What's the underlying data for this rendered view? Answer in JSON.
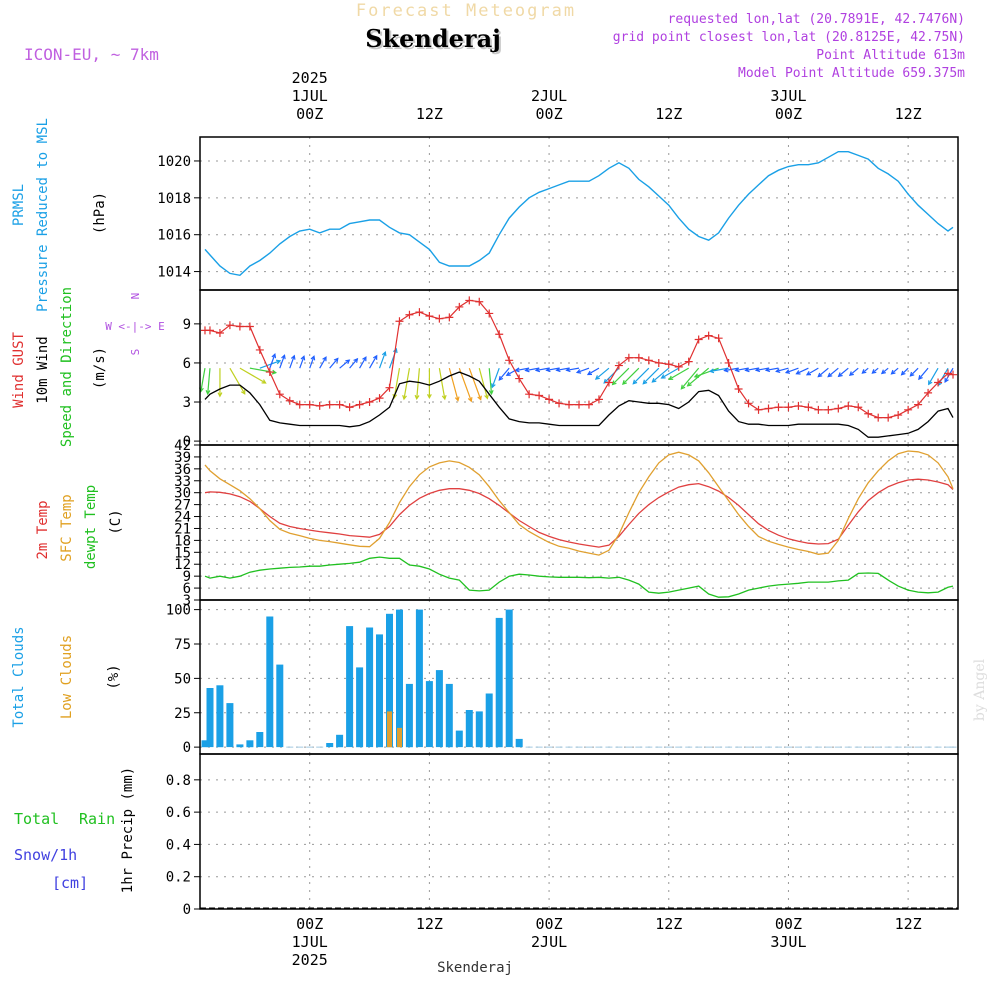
{
  "header": {
    "super_title": "Forecast Meteogram",
    "location": "Skenderaj",
    "model": "ICON-EU, ~ 7km",
    "requested": "requested lon,lat (20.7891E, 42.7476N)",
    "closest": "grid point closest lon,lat (20.8125E, 42.75N)",
    "point_altitude": "Point Altitude 613m",
    "model_altitude": "Model Point Altitude 659.375m",
    "footer_location": "Skenderaj",
    "watermark": "by Angel"
  },
  "time_axis": {
    "top_labels": [
      {
        "hour": 24,
        "lines": [
          "2025",
          "1JUL",
          "00Z"
        ]
      },
      {
        "hour": 36,
        "lines": [
          "12Z"
        ]
      },
      {
        "hour": 48,
        "lines": [
          "2JUL",
          "00Z"
        ]
      },
      {
        "hour": 60,
        "lines": [
          "12Z"
        ]
      },
      {
        "hour": 72,
        "lines": [
          "3JUL",
          "00Z"
        ]
      },
      {
        "hour": 84,
        "lines": [
          "12Z"
        ]
      }
    ],
    "bottom_labels": [
      {
        "hour": 24,
        "lines": [
          "00Z",
          "1JUL",
          "2025"
        ]
      },
      {
        "hour": 36,
        "lines": [
          "12Z"
        ]
      },
      {
        "hour": 48,
        "lines": [
          "00Z",
          "2JUL"
        ]
      },
      {
        "hour": 60,
        "lines": [
          "12Z"
        ]
      },
      {
        "hour": 72,
        "lines": [
          "00Z",
          "3JUL"
        ]
      },
      {
        "hour": 84,
        "lines": [
          "12Z"
        ]
      }
    ],
    "hour_min": 13,
    "hour_max": 89
  },
  "chart_data": [
    {
      "type": "line",
      "panel": "pressure",
      "labels": {
        "blue1": "PRMSL",
        "blue2": "Pressure Reduced to MSL",
        "unit": "(hPa)"
      },
      "ylim": [
        1013,
        1021.3
      ],
      "yticks": [
        1014,
        1016,
        1018,
        1020
      ],
      "x": [
        13.5,
        14,
        15,
        16,
        17,
        18,
        19,
        20,
        21,
        22,
        23,
        24,
        25,
        26,
        27,
        28,
        29,
        30,
        31,
        32,
        33,
        34,
        35,
        36,
        37,
        38,
        39,
        40,
        41,
        42,
        43,
        44,
        45,
        46,
        47,
        48,
        49,
        50,
        51,
        52,
        53,
        54,
        55,
        56,
        57,
        58,
        59,
        60,
        61,
        62,
        63,
        64,
        65,
        66,
        67,
        68,
        69,
        70,
        71,
        72,
        73,
        74,
        75,
        76,
        77,
        78,
        79,
        80,
        81,
        82,
        83,
        84,
        85,
        86,
        87,
        88,
        88.5
      ],
      "series": [
        {
          "values": [
            1015.2,
            1014.9,
            1014.3,
            1013.9,
            1013.8,
            1014.3,
            1014.6,
            1015.0,
            1015.5,
            1015.9,
            1016.2,
            1016.3,
            1016.1,
            1016.3,
            1016.3,
            1016.6,
            1016.7,
            1016.8,
            1016.8,
            1016.4,
            1016.1,
            1016.0,
            1015.6,
            1015.2,
            1014.5,
            1014.3,
            1014.3,
            1014.3,
            1014.6,
            1015.0,
            1016.0,
            1016.9,
            1017.5,
            1018.0,
            1018.3,
            1018.5,
            1018.7,
            1018.9,
            1018.9,
            1018.9,
            1019.2,
            1019.6,
            1019.9,
            1019.6,
            1019.0,
            1018.6,
            1018.1,
            1017.6,
            1016.9,
            1016.3,
            1015.9,
            1015.7,
            1016.1,
            1016.9,
            1017.6,
            1018.2,
            1018.7,
            1019.2,
            1019.5,
            1019.7,
            1019.8,
            1019.8,
            1019.9,
            1020.2,
            1020.5,
            1020.5,
            1020.3,
            1020.1,
            1019.6,
            1019.3,
            1018.9,
            1018.2,
            1017.6,
            1017.1,
            1016.6,
            1016.2,
            1016.4
          ]
        }
      ]
    },
    {
      "type": "line",
      "panel": "wind",
      "labels": {
        "red": "Wind GUST",
        "black": "10m Wind",
        "green": "Speed and Direction",
        "unit": "(m/s)",
        "compass": [
          "N",
          "W <-|-> E",
          "S"
        ]
      },
      "ylim": [
        -0.3,
        11.6
      ],
      "yticks": [
        0,
        3,
        6,
        9
      ],
      "x": [
        13.5,
        14,
        15,
        16,
        17,
        18,
        19,
        20,
        21,
        22,
        23,
        24,
        25,
        26,
        27,
        28,
        29,
        30,
        31,
        32,
        33,
        34,
        35,
        36,
        37,
        38,
        39,
        40,
        41,
        42,
        43,
        44,
        45,
        46,
        47,
        48,
        49,
        50,
        51,
        52,
        53,
        54,
        55,
        56,
        57,
        58,
        59,
        60,
        61,
        62,
        63,
        64,
        65,
        66,
        67,
        68,
        69,
        70,
        71,
        72,
        73,
        74,
        75,
        76,
        77,
        78,
        79,
        80,
        81,
        82,
        83,
        84,
        85,
        86,
        87,
        88,
        88.5
      ],
      "series": [
        {
          "name": "Wind GUST",
          "values": [
            8.5,
            8.5,
            8.3,
            8.9,
            8.8,
            8.8,
            7.0,
            5.3,
            3.6,
            3.1,
            2.8,
            2.8,
            2.7,
            2.8,
            2.8,
            2.6,
            2.8,
            3.0,
            3.3,
            4.1,
            9.2,
            9.7,
            9.9,
            9.6,
            9.4,
            9.5,
            10.3,
            10.8,
            10.7,
            9.8,
            8.2,
            6.2,
            4.8,
            3.6,
            3.5,
            3.2,
            2.9,
            2.8,
            2.8,
            2.8,
            3.2,
            4.5,
            5.8,
            6.4,
            6.4,
            6.2,
            6.0,
            5.9,
            5.7,
            6.1,
            7.8,
            8.1,
            7.9,
            6.0,
            4.0,
            2.9,
            2.4,
            2.5,
            2.6,
            2.6,
            2.7,
            2.6,
            2.4,
            2.4,
            2.5,
            2.7,
            2.6,
            2.1,
            1.8,
            1.8,
            2.0,
            2.4,
            2.8,
            3.7,
            4.5,
            5.2,
            5.1
          ]
        },
        {
          "name": "10m Wind",
          "values": [
            3.2,
            3.6,
            4.0,
            4.3,
            4.3,
            3.7,
            2.8,
            1.6,
            1.4,
            1.3,
            1.2,
            1.2,
            1.2,
            1.2,
            1.2,
            1.1,
            1.2,
            1.5,
            2.0,
            2.6,
            4.4,
            4.6,
            4.5,
            4.3,
            4.6,
            5.0,
            5.3,
            5.0,
            4.6,
            3.6,
            2.6,
            1.7,
            1.5,
            1.4,
            1.4,
            1.3,
            1.2,
            1.2,
            1.2,
            1.2,
            1.2,
            2.0,
            2.7,
            3.1,
            3.0,
            2.9,
            2.9,
            2.8,
            2.5,
            3.0,
            3.8,
            3.9,
            3.5,
            2.3,
            1.5,
            1.3,
            1.3,
            1.2,
            1.2,
            1.2,
            1.3,
            1.3,
            1.3,
            1.3,
            1.3,
            1.2,
            0.9,
            0.3,
            0.3,
            0.4,
            0.5,
            0.6,
            0.9,
            1.5,
            2.3,
            2.5,
            1.8
          ]
        }
      ],
      "barbs_dir_from_deg": [
        10,
        5,
        0,
        330,
        300,
        280,
        250,
        200,
        200,
        200,
        200,
        200,
        210,
        220,
        230,
        220,
        210,
        210,
        200,
        200,
        10,
        10,
        5,
        0,
        350,
        345,
        340,
        340,
        345,
        355,
        20,
        40,
        60,
        80,
        80,
        80,
        80,
        80,
        80,
        70,
        60,
        50,
        45,
        45,
        45,
        45,
        45,
        50,
        60,
        60,
        40,
        50,
        70,
        80,
        80,
        80,
        80,
        80,
        80,
        75,
        70,
        65,
        60,
        50,
        50,
        50,
        50,
        50,
        50,
        50,
        50,
        45,
        45,
        40,
        30,
        30,
        30
      ]
    },
    {
      "type": "line",
      "panel": "temperature",
      "labels": {
        "red": "2m Temp",
        "orange": "SFC Temp",
        "green": "dewpt Temp",
        "unit": "(C)"
      },
      "ylim": [
        3,
        42
      ],
      "yticks": [
        3,
        6,
        9,
        12,
        15,
        18,
        21,
        24,
        27,
        30,
        33,
        36,
        39,
        42
      ],
      "x": [
        13.5,
        14,
        15,
        16,
        17,
        18,
        19,
        20,
        21,
        22,
        23,
        24,
        25,
        26,
        27,
        28,
        29,
        30,
        31,
        32,
        33,
        34,
        35,
        36,
        37,
        38,
        39,
        40,
        41,
        42,
        43,
        44,
        45,
        46,
        47,
        48,
        49,
        50,
        51,
        52,
        53,
        54,
        55,
        56,
        57,
        58,
        59,
        60,
        61,
        62,
        63,
        64,
        65,
        66,
        67,
        68,
        69,
        70,
        71,
        72,
        73,
        74,
        75,
        76,
        77,
        78,
        79,
        80,
        81,
        82,
        83,
        84,
        85,
        86,
        87,
        88,
        88.5
      ],
      "series": [
        {
          "name": "2m Temp",
          "values": [
            30.0,
            30.2,
            30.1,
            29.7,
            29.0,
            27.8,
            26.0,
            24.0,
            22.3,
            21.5,
            21.0,
            20.6,
            20.2,
            19.9,
            19.6,
            19.2,
            19.0,
            18.8,
            19.5,
            21.5,
            24.5,
            26.8,
            28.6,
            29.8,
            30.6,
            31.0,
            31.0,
            30.6,
            29.8,
            28.5,
            26.8,
            24.9,
            23.0,
            21.5,
            20.0,
            19.0,
            18.2,
            17.6,
            17.1,
            16.7,
            16.3,
            16.8,
            19.0,
            22.0,
            24.8,
            27.0,
            28.8,
            30.2,
            31.4,
            32.0,
            32.3,
            31.5,
            30.4,
            28.8,
            26.8,
            24.5,
            22.2,
            20.5,
            19.3,
            18.4,
            17.8,
            17.3,
            17.1,
            17.2,
            18.3,
            21.8,
            25.2,
            28.0,
            30.0,
            31.5,
            32.5,
            33.2,
            33.4,
            33.2,
            32.7,
            32.0,
            30.8
          ]
        },
        {
          "name": "SFC Temp",
          "values": [
            37.0,
            35.5,
            33.5,
            32.0,
            30.5,
            28.5,
            26.0,
            23.0,
            20.8,
            19.8,
            19.2,
            18.5,
            18.0,
            17.7,
            17.3,
            16.9,
            16.5,
            16.4,
            18.5,
            22.5,
            27.5,
            31.5,
            34.5,
            36.5,
            37.5,
            38.0,
            37.6,
            36.4,
            34.5,
            31.5,
            28.0,
            25.0,
            22.0,
            20.2,
            18.8,
            17.5,
            16.5,
            16.0,
            15.3,
            14.8,
            14.3,
            15.5,
            19.5,
            25.0,
            30.0,
            34.0,
            37.5,
            39.5,
            40.2,
            39.5,
            38.0,
            35.0,
            31.5,
            28.0,
            24.5,
            21.5,
            19.0,
            17.8,
            17.0,
            16.3,
            15.7,
            15.2,
            14.5,
            14.8,
            18.0,
            23.5,
            28.5,
            32.5,
            35.5,
            38.0,
            39.8,
            40.5,
            40.3,
            39.5,
            37.5,
            34.0,
            31.0
          ]
        },
        {
          "name": "dewpt Temp",
          "values": [
            9.0,
            8.5,
            9.0,
            8.5,
            9.0,
            10.0,
            10.5,
            10.8,
            11.0,
            11.2,
            11.3,
            11.5,
            11.5,
            11.8,
            12.0,
            12.2,
            12.5,
            13.5,
            13.8,
            13.5,
            13.5,
            11.8,
            11.5,
            10.8,
            9.5,
            8.5,
            8.0,
            5.5,
            5.3,
            5.5,
            7.5,
            9.0,
            9.5,
            9.3,
            9.0,
            8.8,
            8.7,
            8.7,
            8.7,
            8.6,
            8.7,
            8.5,
            8.7,
            8.0,
            7.0,
            5.0,
            4.7,
            5.0,
            5.5,
            6.0,
            6.5,
            4.5,
            3.7,
            3.8,
            4.5,
            5.5,
            6.0,
            6.5,
            6.8,
            7.0,
            7.2,
            7.5,
            7.5,
            7.5,
            7.8,
            8.0,
            9.7,
            9.8,
            9.7,
            8.0,
            6.5,
            5.5,
            5.0,
            4.8,
            5.0,
            6.2,
            6.5
          ]
        }
      ]
    },
    {
      "type": "bar",
      "panel": "clouds",
      "labels": {
        "blue": "Total Clouds",
        "orange": "Low Clouds",
        "unit": "(%)"
      },
      "ylim": [
        -5,
        107
      ],
      "yticks": [
        0,
        25,
        50,
        75,
        100
      ],
      "x": [
        13.5,
        14,
        15,
        16,
        17,
        18,
        19,
        20,
        21,
        22,
        23,
        24,
        25,
        26,
        27,
        28,
        29,
        30,
        31,
        32,
        33,
        34,
        35,
        36,
        37,
        38,
        39,
        40,
        41,
        42,
        43,
        44,
        45,
        46,
        47,
        48,
        49,
        50,
        51,
        52,
        53,
        54,
        55,
        56,
        57,
        58,
        59,
        60,
        61,
        62,
        63,
        64,
        65,
        66,
        67,
        68,
        69,
        70,
        71,
        72,
        73,
        74,
        75,
        76,
        77,
        78,
        79,
        80,
        81,
        82,
        83,
        84,
        85,
        86,
        87,
        88,
        88.5
      ],
      "series": [
        {
          "name": "Total Clouds",
          "values": [
            5,
            43,
            45,
            32,
            2,
            5,
            11,
            95,
            60,
            0,
            0,
            0,
            0,
            3,
            9,
            88,
            58,
            87,
            82,
            97,
            100,
            46,
            100,
            48,
            56,
            46,
            12,
            27,
            26,
            39,
            94,
            100,
            6,
            0,
            0,
            0,
            0,
            0,
            0,
            0,
            0,
            0,
            0,
            0,
            0,
            0,
            0,
            0,
            0,
            0,
            0,
            0,
            0,
            0,
            0,
            0,
            0,
            0,
            0,
            0,
            0,
            0,
            0,
            0,
            0,
            0,
            0,
            0,
            0,
            0,
            0,
            0,
            0,
            0,
            0,
            0,
            0
          ]
        },
        {
          "name": "Low Clouds",
          "values": [
            0,
            0,
            0,
            0,
            0,
            0,
            0,
            0,
            0,
            0,
            0,
            0,
            0,
            0,
            0,
            0,
            0,
            0,
            0,
            26,
            14,
            0,
            0,
            0,
            0,
            0,
            0,
            0,
            0,
            0,
            0,
            0,
            0,
            0,
            0,
            0,
            0,
            0,
            0,
            0,
            0,
            0,
            0,
            0,
            0,
            0,
            0,
            0,
            0,
            0,
            0,
            0,
            0,
            0,
            0,
            0,
            0,
            0,
            0,
            0,
            0,
            0,
            0,
            0,
            0,
            0,
            0,
            0,
            0,
            0,
            0,
            0,
            0,
            0,
            0,
            0,
            0
          ]
        }
      ]
    },
    {
      "type": "bar",
      "panel": "precip",
      "labels": {
        "green1": "Total",
        "green2": "Rain",
        "blue1": "Snow/1h",
        "blue2": "[cm]",
        "unit": "1hr Precip (mm)"
      },
      "ylim": [
        0,
        0.96
      ],
      "yticks": [
        0,
        0.2,
        0.4,
        0.6,
        0.8
      ],
      "ytick_labels": [
        "0",
        "0.2",
        "0.4",
        "0.6",
        "0.8"
      ],
      "series": [
        {
          "name": "Total Rain",
          "values": []
        }
      ]
    }
  ]
}
